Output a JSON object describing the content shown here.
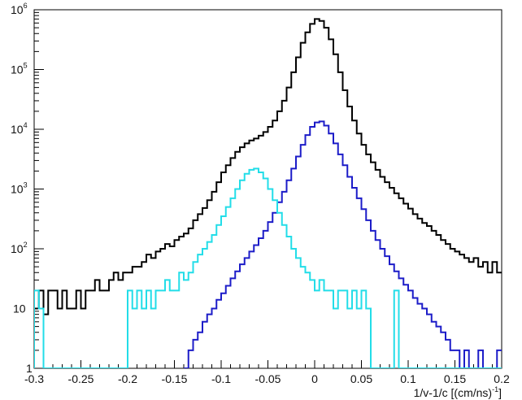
{
  "chart_data": {
    "type": "line",
    "title": "",
    "xlabel": "1/v-1/c [(cm/ns)",
    "xlabel_superscript": "-1",
    "xlabel_suffix": "]",
    "ylabel": "",
    "xlim": [
      -0.3,
      0.2
    ],
    "ylim": [
      1,
      1000000
    ],
    "y_scale": "log",
    "grid": false,
    "legend": "none",
    "x_ticks": [
      {
        "value": -0.3,
        "label": "-0.3"
      },
      {
        "value": -0.25,
        "label": "-0.25"
      },
      {
        "value": -0.2,
        "label": "-0.2"
      },
      {
        "value": -0.15,
        "label": "-0.15"
      },
      {
        "value": -0.1,
        "label": "-0.1"
      },
      {
        "value": -0.05,
        "label": "-0.05"
      },
      {
        "value": 0,
        "label": "0"
      },
      {
        "value": 0.05,
        "label": "0.05"
      },
      {
        "value": 0.1,
        "label": "0.1"
      },
      {
        "value": 0.15,
        "label": "0.15"
      },
      {
        "value": 0.2,
        "label": "0.2"
      }
    ],
    "y_ticks": [
      {
        "value": 1,
        "base": "1",
        "exp": ""
      },
      {
        "value": 10,
        "base": "10",
        "exp": ""
      },
      {
        "value": 100,
        "base": "10",
        "exp": "2"
      },
      {
        "value": 1000,
        "base": "10",
        "exp": "3"
      },
      {
        "value": 10000,
        "base": "10",
        "exp": "4"
      },
      {
        "value": 100000,
        "base": "10",
        "exp": "5"
      },
      {
        "value": 1000000,
        "base": "10",
        "exp": "6"
      }
    ],
    "series": [
      {
        "color": "#000000",
        "points": [
          [
            -0.3,
            10
          ],
          [
            -0.295,
            20
          ],
          [
            -0.29,
            8
          ],
          [
            -0.285,
            20
          ],
          [
            -0.28,
            20
          ],
          [
            -0.275,
            10
          ],
          [
            -0.27,
            20
          ],
          [
            -0.265,
            10
          ],
          [
            -0.26,
            10
          ],
          [
            -0.255,
            20
          ],
          [
            -0.25,
            10
          ],
          [
            -0.245,
            20
          ],
          [
            -0.24,
            20
          ],
          [
            -0.235,
            30
          ],
          [
            -0.23,
            20
          ],
          [
            -0.225,
            20
          ],
          [
            -0.22,
            30
          ],
          [
            -0.215,
            40
          ],
          [
            -0.21,
            30
          ],
          [
            -0.205,
            40
          ],
          [
            -0.2,
            40
          ],
          [
            -0.195,
            50
          ],
          [
            -0.19,
            50
          ],
          [
            -0.185,
            60
          ],
          [
            -0.18,
            80
          ],
          [
            -0.175,
            70
          ],
          [
            -0.17,
            90
          ],
          [
            -0.165,
            100
          ],
          [
            -0.16,
            120
          ],
          [
            -0.155,
            110
          ],
          [
            -0.15,
            140
          ],
          [
            -0.145,
            160
          ],
          [
            -0.14,
            180
          ],
          [
            -0.135,
            220
          ],
          [
            -0.13,
            300
          ],
          [
            -0.125,
            380
          ],
          [
            -0.12,
            480
          ],
          [
            -0.115,
            650
          ],
          [
            -0.11,
            900
          ],
          [
            -0.105,
            1300
          ],
          [
            -0.1,
            1900
          ],
          [
            -0.095,
            2500
          ],
          [
            -0.09,
            3300
          ],
          [
            -0.085,
            4200
          ],
          [
            -0.08,
            5000
          ],
          [
            -0.075,
            5800
          ],
          [
            -0.07,
            6500
          ],
          [
            -0.065,
            7000
          ],
          [
            -0.06,
            7800
          ],
          [
            -0.055,
            9000
          ],
          [
            -0.05,
            11000
          ],
          [
            -0.045,
            14000
          ],
          [
            -0.04,
            20000
          ],
          [
            -0.035,
            30000
          ],
          [
            -0.03,
            50000
          ],
          [
            -0.025,
            90000
          ],
          [
            -0.02,
            160000
          ],
          [
            -0.015,
            280000
          ],
          [
            -0.01,
            420000
          ],
          [
            -0.005,
            580000
          ],
          [
            0,
            700000
          ],
          [
            0.005,
            650000
          ],
          [
            0.01,
            500000
          ],
          [
            0.015,
            320000
          ],
          [
            0.02,
            180000
          ],
          [
            0.025,
            90000
          ],
          [
            0.03,
            45000
          ],
          [
            0.035,
            24000
          ],
          [
            0.04,
            14000
          ],
          [
            0.045,
            8500
          ],
          [
            0.05,
            5500
          ],
          [
            0.055,
            3800
          ],
          [
            0.06,
            2800
          ],
          [
            0.065,
            2100
          ],
          [
            0.07,
            1600
          ],
          [
            0.075,
            1300
          ],
          [
            0.08,
            1050
          ],
          [
            0.085,
            850
          ],
          [
            0.09,
            700
          ],
          [
            0.095,
            570
          ],
          [
            0.1,
            470
          ],
          [
            0.105,
            380
          ],
          [
            0.11,
            320
          ],
          [
            0.115,
            270
          ],
          [
            0.12,
            240
          ],
          [
            0.125,
            200
          ],
          [
            0.13,
            170
          ],
          [
            0.135,
            140
          ],
          [
            0.14,
            120
          ],
          [
            0.145,
            100
          ],
          [
            0.15,
            90
          ],
          [
            0.155,
            80
          ],
          [
            0.16,
            70
          ],
          [
            0.165,
            60
          ],
          [
            0.17,
            70
          ],
          [
            0.175,
            50
          ],
          [
            0.18,
            60
          ],
          [
            0.185,
            40
          ],
          [
            0.19,
            60
          ],
          [
            0.195,
            40
          ]
        ]
      },
      {
        "color": "#1c1cc8",
        "points": [
          [
            -0.14,
            1
          ],
          [
            -0.135,
            2
          ],
          [
            -0.13,
            3
          ],
          [
            -0.125,
            4
          ],
          [
            -0.12,
            6
          ],
          [
            -0.115,
            8
          ],
          [
            -0.11,
            10
          ],
          [
            -0.105,
            14
          ],
          [
            -0.1,
            18
          ],
          [
            -0.095,
            24
          ],
          [
            -0.09,
            32
          ],
          [
            -0.085,
            42
          ],
          [
            -0.08,
            55
          ],
          [
            -0.075,
            70
          ],
          [
            -0.07,
            90
          ],
          [
            -0.065,
            115
          ],
          [
            -0.06,
            150
          ],
          [
            -0.055,
            200
          ],
          [
            -0.05,
            280
          ],
          [
            -0.045,
            400
          ],
          [
            -0.04,
            600
          ],
          [
            -0.035,
            900
          ],
          [
            -0.03,
            1400
          ],
          [
            -0.025,
            2200
          ],
          [
            -0.02,
            3500
          ],
          [
            -0.015,
            5500
          ],
          [
            -0.01,
            8000
          ],
          [
            -0.005,
            11000
          ],
          [
            0,
            13000
          ],
          [
            0.005,
            13500
          ],
          [
            0.01,
            11500
          ],
          [
            0.015,
            8500
          ],
          [
            0.02,
            5800
          ],
          [
            0.025,
            3800
          ],
          [
            0.03,
            2500
          ],
          [
            0.035,
            1600
          ],
          [
            0.04,
            1050
          ],
          [
            0.045,
            700
          ],
          [
            0.05,
            460
          ],
          [
            0.055,
            300
          ],
          [
            0.06,
            200
          ],
          [
            0.065,
            140
          ],
          [
            0.07,
            100
          ],
          [
            0.075,
            75
          ],
          [
            0.08,
            55
          ],
          [
            0.085,
            42
          ],
          [
            0.09,
            32
          ],
          [
            0.095,
            25
          ],
          [
            0.1,
            20
          ],
          [
            0.105,
            15
          ],
          [
            0.11,
            12
          ],
          [
            0.115,
            10
          ],
          [
            0.12,
            8
          ],
          [
            0.125,
            6
          ],
          [
            0.13,
            5
          ],
          [
            0.135,
            4
          ],
          [
            0.14,
            3
          ],
          [
            0.145,
            2
          ],
          [
            0.15,
            2
          ],
          [
            0.155,
            1
          ],
          [
            0.16,
            2
          ],
          [
            0.165,
            1
          ],
          [
            0.17,
            1
          ],
          [
            0.175,
            2
          ],
          [
            0.18,
            1
          ],
          [
            0.185,
            1
          ],
          [
            0.19,
            1
          ],
          [
            0.195,
            2
          ]
        ]
      },
      {
        "color": "#22dde8",
        "points": [
          [
            -0.3,
            20
          ],
          [
            -0.295,
            10
          ],
          [
            -0.29,
            1
          ],
          [
            -0.285,
            1
          ],
          [
            -0.28,
            1
          ],
          [
            -0.275,
            1
          ],
          [
            -0.27,
            1
          ],
          [
            -0.265,
            1
          ],
          [
            -0.26,
            1
          ],
          [
            -0.255,
            1
          ],
          [
            -0.25,
            1
          ],
          [
            -0.245,
            1
          ],
          [
            -0.24,
            1
          ],
          [
            -0.235,
            1
          ],
          [
            -0.23,
            1
          ],
          [
            -0.225,
            1
          ],
          [
            -0.22,
            1
          ],
          [
            -0.215,
            1
          ],
          [
            -0.21,
            1
          ],
          [
            -0.205,
            1
          ],
          [
            -0.2,
            20
          ],
          [
            -0.195,
            10
          ],
          [
            -0.19,
            20
          ],
          [
            -0.185,
            10
          ],
          [
            -0.18,
            20
          ],
          [
            -0.175,
            10
          ],
          [
            -0.17,
            20
          ],
          [
            -0.165,
            20
          ],
          [
            -0.16,
            30
          ],
          [
            -0.155,
            20
          ],
          [
            -0.15,
            20
          ],
          [
            -0.145,
            40
          ],
          [
            -0.14,
            30
          ],
          [
            -0.135,
            40
          ],
          [
            -0.13,
            60
          ],
          [
            -0.125,
            80
          ],
          [
            -0.12,
            100
          ],
          [
            -0.115,
            130
          ],
          [
            -0.11,
            170
          ],
          [
            -0.105,
            250
          ],
          [
            -0.1,
            350
          ],
          [
            -0.095,
            500
          ],
          [
            -0.09,
            700
          ],
          [
            -0.085,
            1000
          ],
          [
            -0.08,
            1400
          ],
          [
            -0.075,
            1800
          ],
          [
            -0.07,
            2100
          ],
          [
            -0.065,
            2200
          ],
          [
            -0.06,
            1900
          ],
          [
            -0.055,
            1500
          ],
          [
            -0.05,
            1000
          ],
          [
            -0.045,
            650
          ],
          [
            -0.04,
            400
          ],
          [
            -0.035,
            250
          ],
          [
            -0.03,
            160
          ],
          [
            -0.025,
            100
          ],
          [
            -0.02,
            70
          ],
          [
            -0.015,
            50
          ],
          [
            -0.01,
            40
          ],
          [
            -0.005,
            30
          ],
          [
            0,
            20
          ],
          [
            0.005,
            30
          ],
          [
            0.01,
            20
          ],
          [
            0.015,
            20
          ],
          [
            0.02,
            10
          ],
          [
            0.025,
            20
          ],
          [
            0.03,
            20
          ],
          [
            0.035,
            10
          ],
          [
            0.04,
            20
          ],
          [
            0.045,
            10
          ],
          [
            0.05,
            20
          ],
          [
            0.055,
            10
          ],
          [
            0.06,
            1
          ],
          [
            0.065,
            1
          ],
          [
            0.07,
            1
          ],
          [
            0.075,
            1
          ],
          [
            0.08,
            1
          ],
          [
            0.085,
            20
          ],
          [
            0.09,
            1
          ],
          [
            0.095,
            1
          ],
          [
            0.1,
            1
          ],
          [
            0.105,
            1
          ],
          [
            0.11,
            1
          ],
          [
            0.115,
            1
          ],
          [
            0.12,
            1
          ],
          [
            0.125,
            1
          ],
          [
            0.13,
            1
          ],
          [
            0.135,
            1
          ],
          [
            0.14,
            1
          ],
          [
            0.145,
            1
          ],
          [
            0.15,
            1
          ],
          [
            0.155,
            1
          ],
          [
            0.16,
            1
          ],
          [
            0.165,
            1
          ],
          [
            0.17,
            1
          ],
          [
            0.175,
            1
          ],
          [
            0.18,
            1
          ],
          [
            0.185,
            1
          ],
          [
            0.19,
            1
          ],
          [
            0.195,
            1
          ]
        ]
      }
    ]
  }
}
